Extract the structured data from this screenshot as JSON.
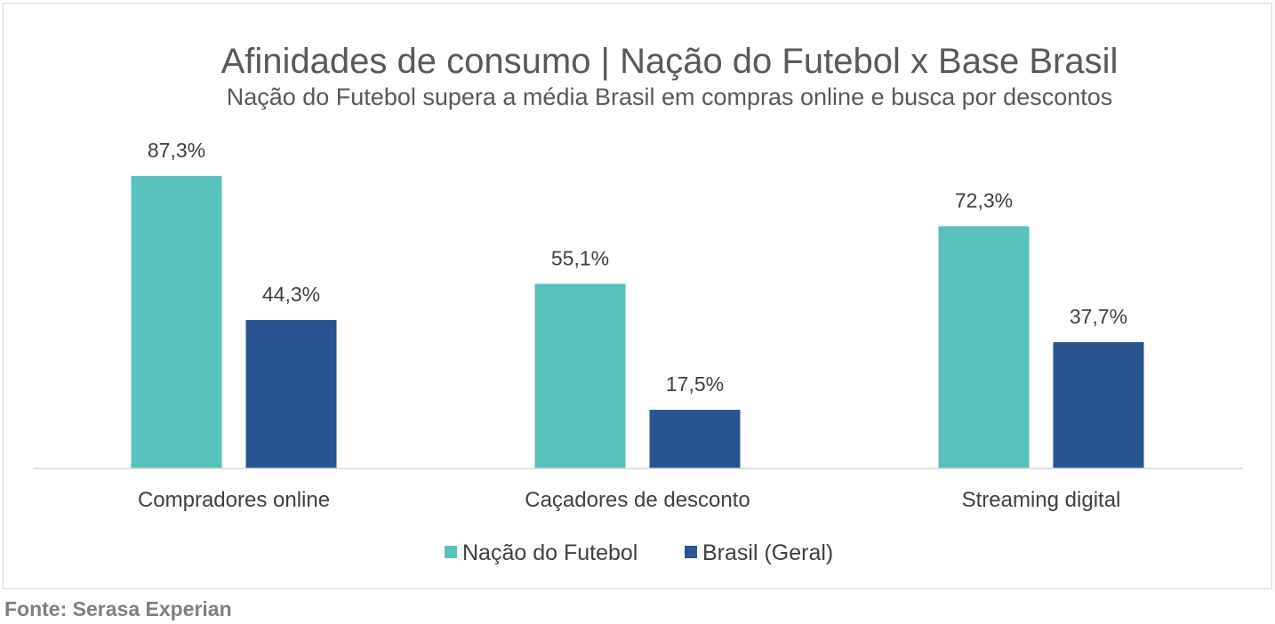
{
  "chart_data": {
    "type": "bar",
    "title": "Afinidades de consumo | Nação do Futebol x Base Brasil",
    "subtitle": "Nação do Futebol supera a média Brasil em compras online e busca por descontos",
    "categories": [
      "Compradores online",
      "Caçadores de desconto",
      "Streaming digital"
    ],
    "series": [
      {
        "name": "Nação do Futebol",
        "color": "#56c2ba",
        "values": [
          87.3,
          55.1,
          72.3
        ],
        "labels": [
          "87,3%",
          "55,1%",
          "72,3%"
        ]
      },
      {
        "name": "Brasil (Geral)",
        "color": "#285591",
        "values": [
          44.3,
          17.5,
          37.7
        ],
        "labels": [
          "44,3%",
          "17,5%",
          "37,7%"
        ]
      }
    ],
    "ylim": [
      0,
      100
    ],
    "grid": false,
    "legend_position": "bottom"
  },
  "source": "Fonte: Serasa Experian"
}
